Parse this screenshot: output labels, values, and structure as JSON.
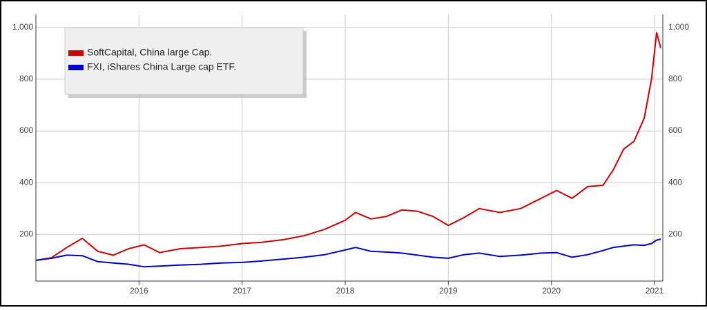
{
  "chart_data": {
    "type": "line",
    "x": [
      2015.0,
      2015.15,
      2015.3,
      2015.45,
      2015.6,
      2015.75,
      2015.9,
      2016.05,
      2016.2,
      2016.4,
      2016.6,
      2016.8,
      2017.0,
      2017.2,
      2017.4,
      2017.6,
      2017.8,
      2018.0,
      2018.1,
      2018.25,
      2018.4,
      2018.55,
      2018.7,
      2018.85,
      2019.0,
      2019.15,
      2019.3,
      2019.5,
      2019.7,
      2019.9,
      2020.05,
      2020.2,
      2020.35,
      2020.5,
      2020.6,
      2020.7,
      2020.8,
      2020.9,
      2020.97,
      2021.02,
      2021.06
    ],
    "series": [
      {
        "name": "SoftCapital, China large Cap.",
        "color": "#cc0000",
        "values": [
          100,
          110,
          150,
          185,
          135,
          120,
          145,
          160,
          130,
          145,
          150,
          155,
          165,
          170,
          180,
          195,
          220,
          255,
          285,
          260,
          270,
          295,
          290,
          270,
          235,
          265,
          300,
          285,
          300,
          340,
          370,
          340,
          385,
          390,
          450,
          530,
          560,
          650,
          800,
          980,
          920
        ]
      },
      {
        "name": "FXI, iShares China Large cap ETF.",
        "color": "#0000cc",
        "values": [
          100,
          108,
          120,
          118,
          95,
          90,
          85,
          75,
          78,
          82,
          85,
          90,
          92,
          98,
          105,
          112,
          122,
          140,
          150,
          135,
          132,
          128,
          120,
          112,
          108,
          122,
          128,
          115,
          120,
          128,
          130,
          112,
          122,
          138,
          150,
          155,
          160,
          158,
          165,
          178,
          182
        ]
      }
    ],
    "xlim": [
      2015.0,
      2021.08
    ],
    "xticks": [
      2016,
      2017,
      2018,
      2019,
      2020,
      2021
    ],
    "ylim": [
      20,
      1050
    ],
    "yticks": [
      200,
      400,
      600,
      800,
      {
        "value": 1000,
        "label": "1,000"
      }
    ],
    "grid": true
  }
}
